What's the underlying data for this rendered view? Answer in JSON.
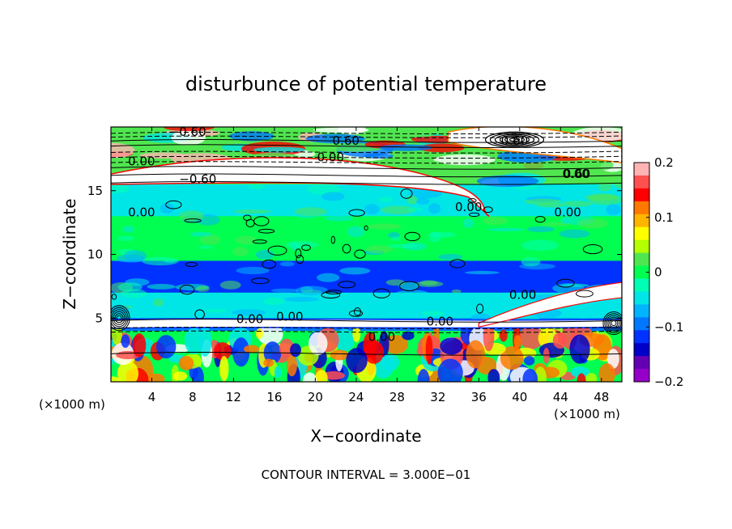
{
  "chart_data": {
    "type": "heatmap",
    "title": "disturbunce of potential temperature",
    "xlabel": "X−coordinate",
    "ylabel": "Z−coordinate",
    "x_unit": "(×1000 m)",
    "z_unit": "(×1000 m)",
    "xlim": [
      0,
      50
    ],
    "zlim": [
      0,
      20
    ],
    "x_ticks": [
      "4",
      "8",
      "12",
      "16",
      "20",
      "24",
      "28",
      "32",
      "36",
      "40",
      "44",
      "48"
    ],
    "z_ticks": [
      "5",
      "10",
      "15"
    ],
    "colorbar": {
      "range": [
        -0.2,
        0.2
      ],
      "tick_labels": [
        "0.2",
        "0.1",
        "0",
        "−0.1",
        "−0.2"
      ],
      "colors": [
        "#ffb4b4",
        "#ff5050",
        "#ff0000",
        "#ff7800",
        "#ffb400",
        "#ffff00",
        "#b4ff00",
        "#50e650",
        "#00ff50",
        "#00ffb4",
        "#00e6e6",
        "#00b4ff",
        "#0078ff",
        "#0032ff",
        "#0000c8",
        "#6400b4",
        "#9600c8"
      ]
    },
    "contour_interval_text": "CONTOUR INTERVAL = 3.000E−01",
    "contour_labels": [
      "−0.60",
      "0.00",
      "0.60",
      "0.00",
      "0.60",
      "0.00",
      "0.60",
      "−0.60",
      "0.00",
      "0.00",
      "0.00",
      "0.00",
      "0.00",
      "0.00",
      "0.00",
      "0.00"
    ],
    "bands": [
      {
        "z0": 0,
        "z1": 4,
        "value": 0.0
      },
      {
        "z0": 4,
        "z1": 5,
        "value": -0.1
      },
      {
        "z0": 5,
        "z1": 7,
        "value": -0.05
      },
      {
        "z0": 7,
        "z1": 9.5,
        "value": -0.12
      },
      {
        "z0": 9.5,
        "z1": 13,
        "value": 0.0
      },
      {
        "z0": 13,
        "z1": 15.5,
        "value": -0.04
      },
      {
        "z0": 15.5,
        "z1": 20,
        "value": 0.02
      }
    ]
  }
}
